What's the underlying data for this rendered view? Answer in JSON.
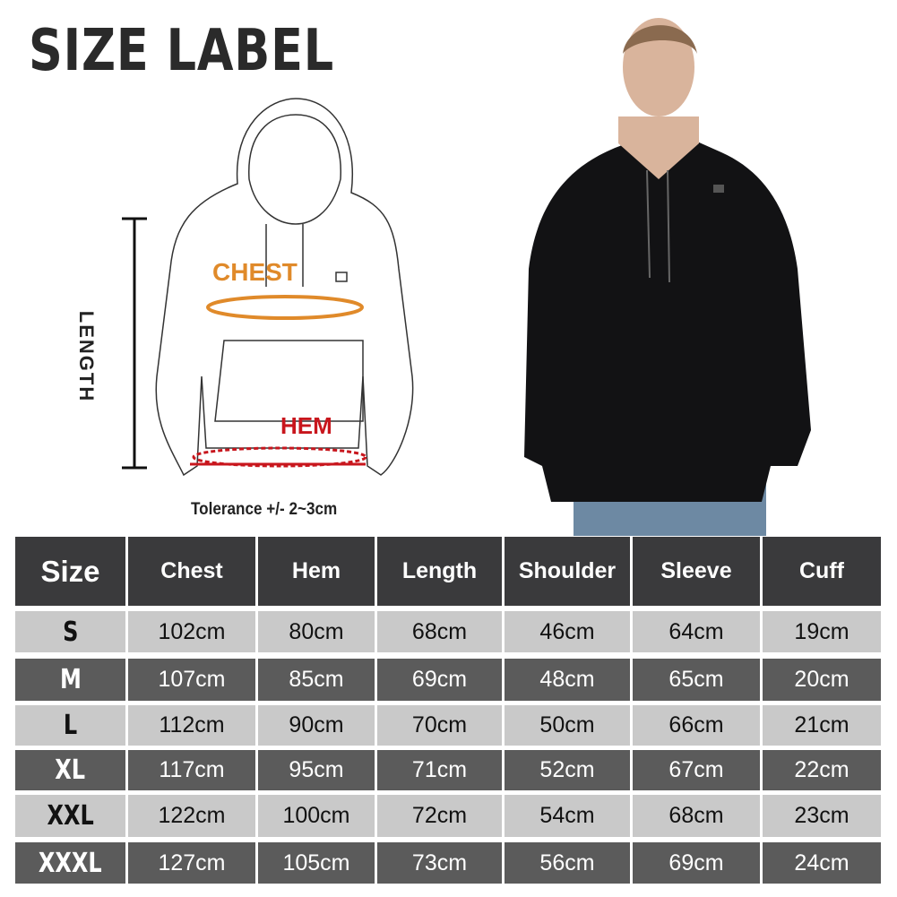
{
  "title": "SIZE LABEL",
  "diagram": {
    "length_label": "LENGTH",
    "chest_label": "CHEST",
    "hem_label": "HEM",
    "tolerance": "Tolerance +/- 2~3cm",
    "colors": {
      "chest": "#e08a2a",
      "hem": "#c8161d"
    }
  },
  "table": {
    "headers": [
      "Size",
      "Chest",
      "Hem",
      "Length",
      "Shoulder",
      "Sleeve",
      "Cuff"
    ],
    "rows": [
      [
        "S",
        "102cm",
        "80cm",
        "68cm",
        "46cm",
        "64cm",
        "19cm"
      ],
      [
        "M",
        "107cm",
        "85cm",
        "69cm",
        "48cm",
        "65cm",
        "20cm"
      ],
      [
        "L",
        "112cm",
        "90cm",
        "70cm",
        "50cm",
        "66cm",
        "21cm"
      ],
      [
        "XL",
        "117cm",
        "95cm",
        "71cm",
        "52cm",
        "67cm",
        "22cm"
      ],
      [
        "XXL",
        "122cm",
        "100cm",
        "72cm",
        "54cm",
        "68cm",
        "23cm"
      ],
      [
        "XXXL",
        "127cm",
        "105cm",
        "73cm",
        "56cm",
        "69cm",
        "24cm"
      ]
    ],
    "colors": {
      "header": "#3a3a3c",
      "light_row": "#c9c9c9",
      "dark_row": "#5b5b5b"
    }
  }
}
